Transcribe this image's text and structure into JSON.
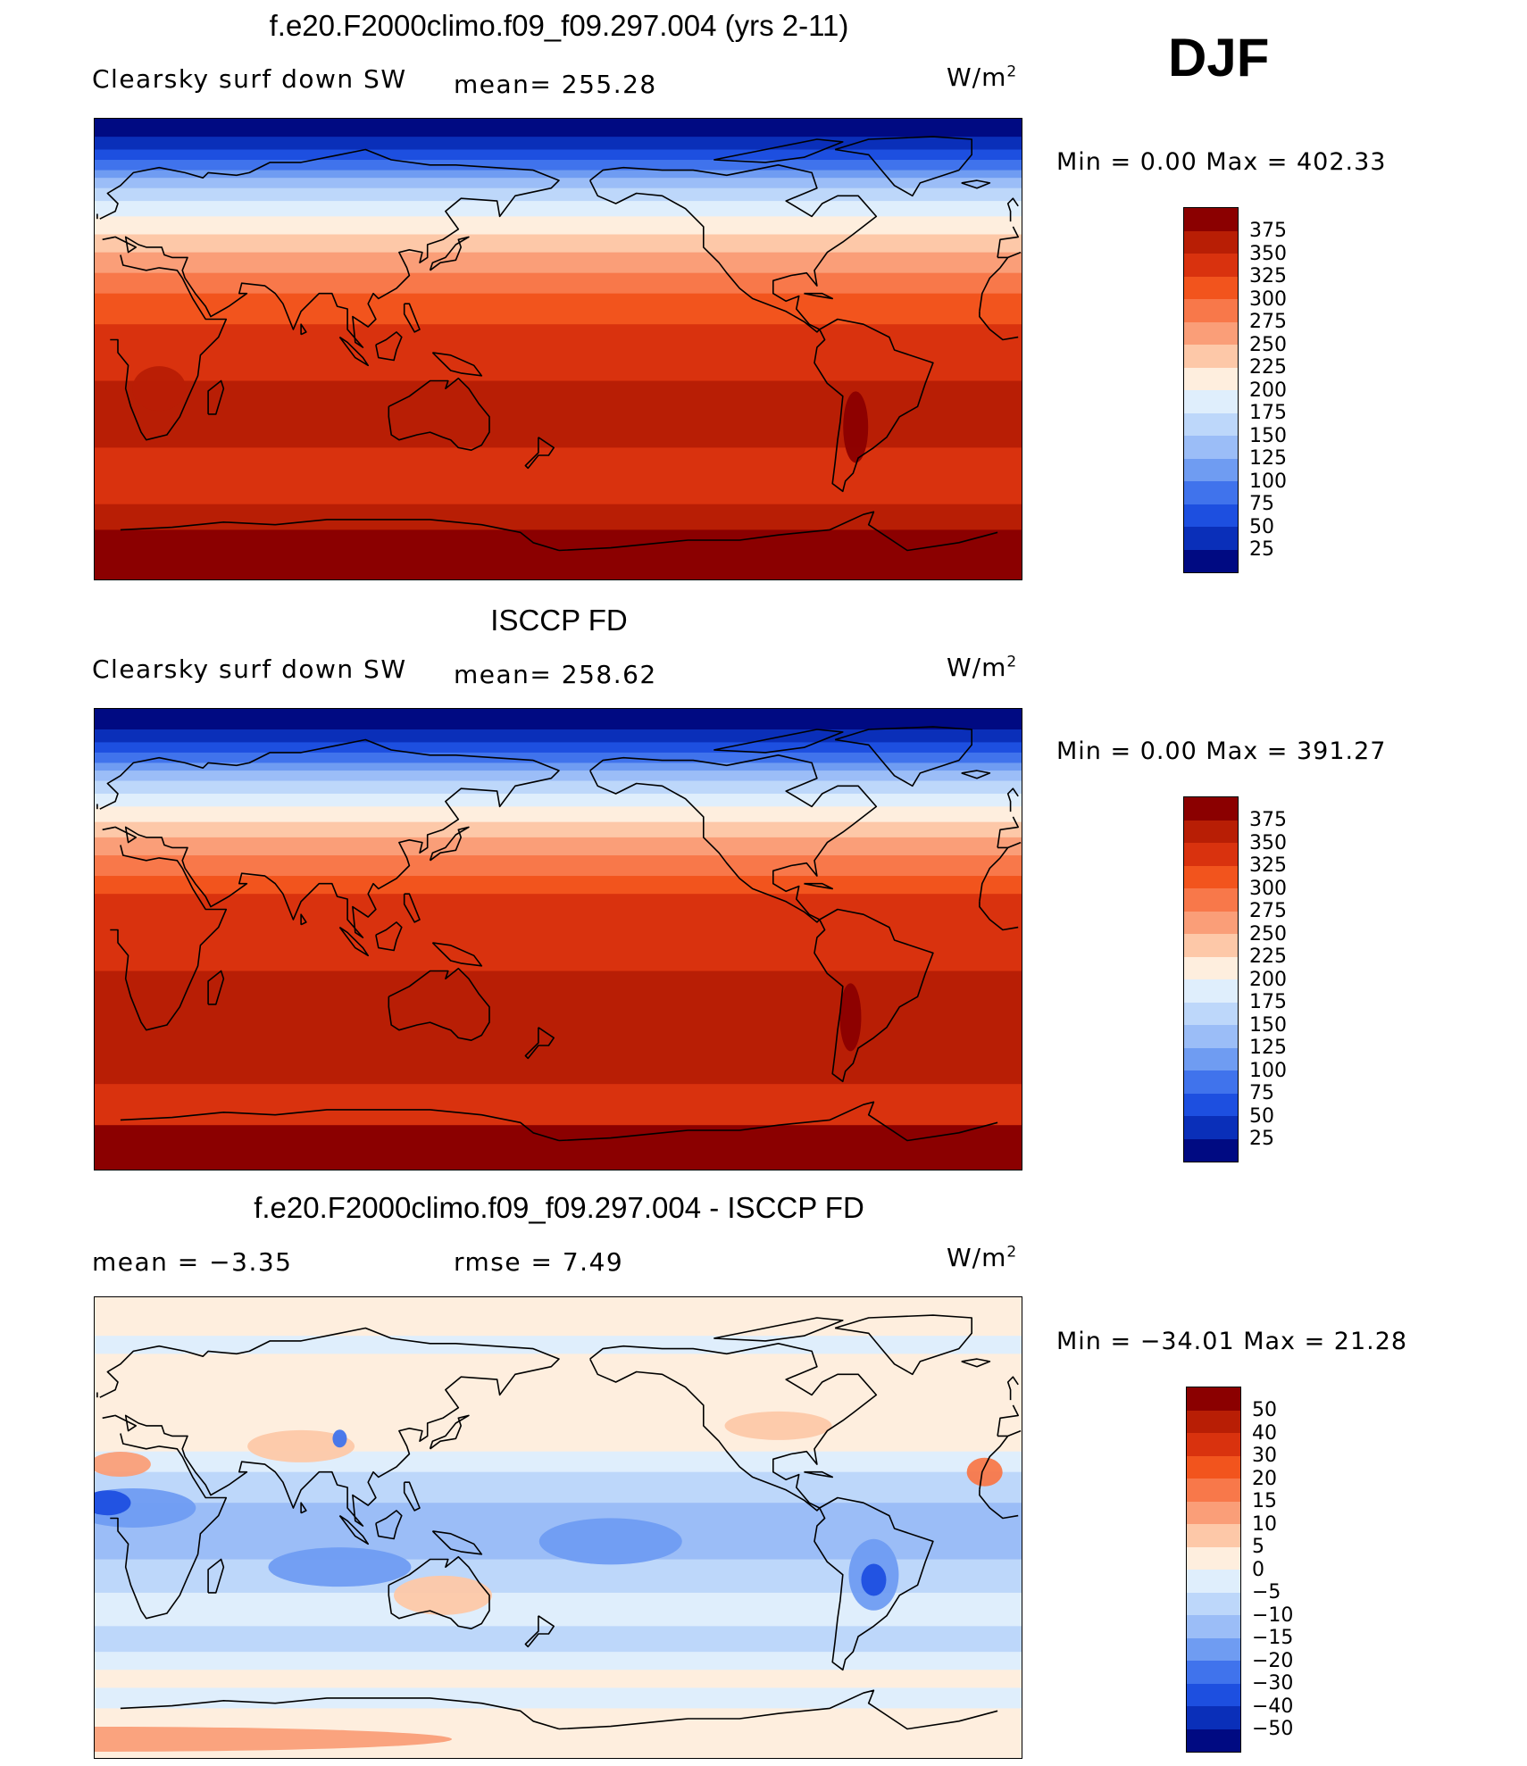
{
  "season": "DJF",
  "panels": [
    {
      "title": "f.e20.F2000climo.f09_f09.297.004 (yrs 2-11)",
      "left_label": "Clearsky surf down SW",
      "center_label": "mean= 255.28",
      "units": "W/m",
      "units_sup": "2",
      "min_max": "Min =    0.00 Max = 402.33",
      "field": "model"
    },
    {
      "title": "ISCCP FD",
      "left_label": "Clearsky surf down SW",
      "center_label": "mean= 258.62",
      "units": "W/m",
      "units_sup": "2",
      "min_max": "Min =    0.00 Max = 391.27",
      "field": "obs"
    },
    {
      "title": "f.e20.F2000climo.f09_f09.297.004 - ISCCP FD",
      "left_label": "mean =   −3.35",
      "center_label": "rmse =    7.49",
      "units": "W/m",
      "units_sup": "2",
      "min_max": "Min = −34.01 Max =  21.28",
      "field": "diff"
    }
  ],
  "colorbars": {
    "abs": {
      "labels": [
        "375",
        "350",
        "325",
        "300",
        "275",
        "250",
        "225",
        "200",
        "175",
        "150",
        "125",
        "100",
        "75",
        "50",
        "25"
      ],
      "colors": [
        "#8b0000",
        "#b81e05",
        "#d9320e",
        "#f2541d",
        "#f8784a",
        "#fa9e78",
        "#fdc8a8",
        "#feeede",
        "#dfeefc",
        "#bdd7fa",
        "#9bbdf7",
        "#6f9cf2",
        "#4073ec",
        "#1d4fe0",
        "#0a2fb9",
        "#000a82"
      ]
    },
    "diff": {
      "labels": [
        "50",
        "40",
        "30",
        "20",
        "15",
        "10",
        "5",
        "0",
        "−5",
        "−10",
        "−15",
        "−20",
        "−30",
        "−40",
        "−50"
      ],
      "colors": [
        "#8b0000",
        "#b81e05",
        "#d9320e",
        "#f2541d",
        "#f8784a",
        "#fa9e78",
        "#fdc8a8",
        "#feeede",
        "#dfeefc",
        "#bdd7fa",
        "#9bbdf7",
        "#6f9cf2",
        "#4073ec",
        "#1d4fe0",
        "#0a2fb9",
        "#000a82"
      ]
    }
  }
}
